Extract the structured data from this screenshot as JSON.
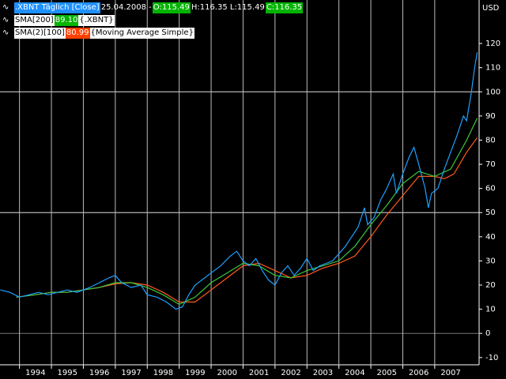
{
  "chart_data": {
    "type": "line",
    "header": {
      "symbol": ".XBNT Täglich [Close]",
      "date": "25.04.2008 -",
      "open": "O:115.49",
      "high_low": "H:116.35 L:115.49",
      "close": "C:116.35",
      "sma200_name": "SMA[200]",
      "sma200_value": "89.10",
      "sma200_source": "{.XBNT}",
      "sma100_name": "SMA(2)[100]",
      "sma100_value": "80.99",
      "sma100_source": "{Moving Average Simple}"
    },
    "y_unit": "USD",
    "xlim": [
      1993.39,
      2008.39
    ],
    "ylim": [
      -13,
      138
    ],
    "xticks": [
      {
        "value": 1994,
        "label": "1994"
      },
      {
        "value": 1995,
        "label": "1995"
      },
      {
        "value": 1996,
        "label": "1996"
      },
      {
        "value": 1997,
        "label": "1997"
      },
      {
        "value": 1998,
        "label": "1998"
      },
      {
        "value": 1999,
        "label": "1999"
      },
      {
        "value": 2000,
        "label": "2000"
      },
      {
        "value": 2001,
        "label": "2001"
      },
      {
        "value": 2002,
        "label": "2002"
      },
      {
        "value": 2003,
        "label": "2003"
      },
      {
        "value": 2004,
        "label": "2004"
      },
      {
        "value": 2005,
        "label": "2005"
      },
      {
        "value": 2006,
        "label": "2006"
      },
      {
        "value": 2007,
        "label": "2007"
      }
    ],
    "yticks": [
      -10,
      0,
      10,
      20,
      30,
      40,
      50,
      60,
      70,
      80,
      90,
      100,
      110,
      120
    ],
    "ygrid": [
      0,
      50,
      100
    ],
    "series": [
      {
        "name": "Close",
        "color": "#1ea0ff",
        "x": [
          1993.4,
          1993.7,
          1994.0,
          1994.3,
          1994.6,
          1994.9,
          1995.2,
          1995.5,
          1995.8,
          1996.2,
          1996.5,
          1996.8,
          1997.0,
          1997.2,
          1997.5,
          1997.8,
          1998.0,
          1998.3,
          1998.6,
          1998.9,
          1999.1,
          1999.3,
          1999.5,
          1999.8,
          2000.0,
          2000.3,
          2000.6,
          2000.8,
          2001.0,
          2001.2,
          2001.4,
          2001.6,
          2001.8,
          2002.0,
          2002.2,
          2002.4,
          2002.6,
          2002.8,
          2003.0,
          2003.2,
          2003.4,
          2003.6,
          2003.8,
          2004.0,
          2004.2,
          2004.4,
          2004.6,
          2004.8,
          2004.9,
          2005.1,
          2005.3,
          2005.5,
          2005.7,
          2005.8,
          2006.0,
          2006.2,
          2006.35,
          2006.5,
          2006.7,
          2006.8,
          2006.9,
          2007.1,
          2007.3,
          2007.5,
          2007.7,
          2007.9,
          2008.0,
          2008.15,
          2008.25,
          2008.33
        ],
        "values": [
          18,
          17,
          15,
          16,
          17,
          16,
          17,
          18,
          17,
          19,
          21,
          23,
          24,
          21,
          19,
          20,
          16,
          15,
          13,
          10,
          11,
          16,
          20,
          23,
          25,
          28,
          32,
          34,
          30,
          28,
          31,
          26,
          22,
          20,
          25,
          28,
          24,
          27,
          31,
          26,
          28,
          29,
          30,
          33,
          36,
          40,
          44,
          52,
          45,
          48,
          55,
          60,
          66,
          58,
          66,
          73,
          77,
          70,
          60,
          52,
          58,
          60,
          68,
          75,
          82,
          90,
          88,
          100,
          110,
          116.35
        ]
      },
      {
        "name": "SMA[200]",
        "color": "#3cc83c",
        "x": [
          1993.9,
          1994.5,
          1995.0,
          1995.5,
          1996.0,
          1996.5,
          1997.0,
          1997.5,
          1998.0,
          1998.5,
          1999.0,
          1999.5,
          2000.0,
          2000.5,
          2001.0,
          2001.5,
          2002.0,
          2002.5,
          2003.0,
          2003.5,
          2004.0,
          2004.5,
          2005.0,
          2005.5,
          2006.0,
          2006.5,
          2007.0,
          2007.5,
          2008.0,
          2008.33
        ],
        "values": [
          15,
          16,
          17,
          17,
          18,
          19,
          21,
          21,
          19,
          16,
          12,
          15,
          21,
          25,
          29,
          28,
          24,
          23,
          26,
          28,
          30,
          36,
          45,
          53,
          62,
          67,
          65,
          68,
          80,
          89.1
        ]
      },
      {
        "name": "SMA(2)[100]",
        "color": "#ff5a1e",
        "x": [
          1993.9,
          1994.5,
          1995.0,
          1995.5,
          1996.0,
          1996.5,
          1997.0,
          1997.5,
          1998.0,
          1998.5,
          1999.0,
          1999.5,
          2000.0,
          2000.5,
          2001.0,
          2001.5,
          2002.0,
          2002.5,
          2003.0,
          2003.5,
          2004.0,
          2004.5,
          2005.0,
          2005.5,
          2006.0,
          2006.5,
          2007.0,
          2007.3,
          2007.6,
          2008.0,
          2008.33
        ],
        "values": [
          15,
          16,
          17,
          17,
          18,
          19,
          20.5,
          21,
          20,
          17,
          13,
          13,
          18,
          23,
          28,
          29,
          26,
          23,
          24,
          27,
          29,
          32,
          40,
          49,
          57,
          65,
          65,
          64,
          66,
          75,
          80.99
        ]
      }
    ]
  }
}
